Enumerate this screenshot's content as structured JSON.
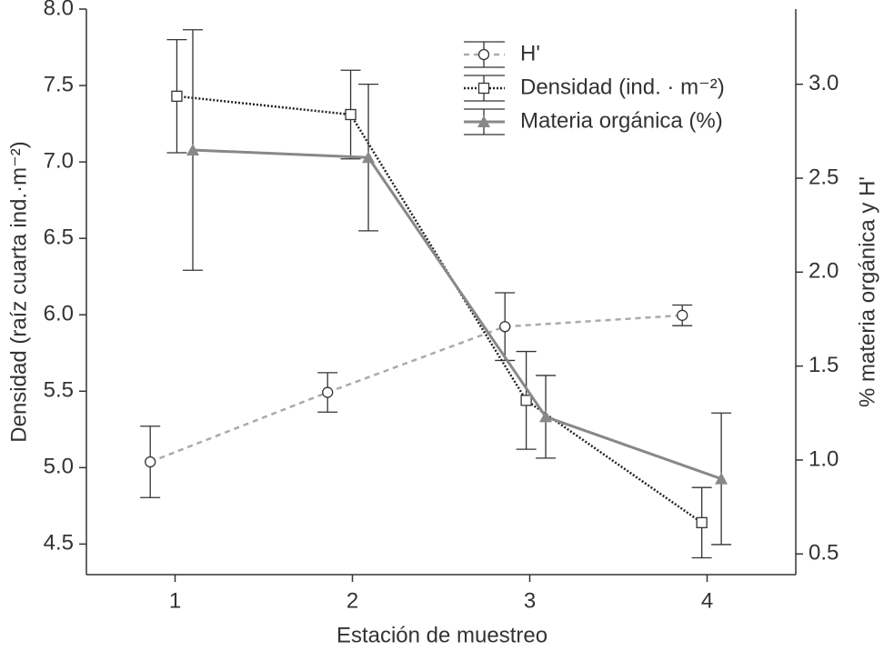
{
  "chart_data": {
    "type": "line",
    "xlabel": "Estación de muestreo",
    "ylabel": "Densidad (raíz cuarta ind.·m⁻²)",
    "y2label": "% materia orgánica y H'",
    "xlim": [
      0.5,
      4.5
    ],
    "xticks": [
      1,
      2,
      3,
      4
    ],
    "ylim": [
      4.3,
      8.0
    ],
    "yticks": [
      4.5,
      {
        "value": 5,
        "label": "5.0"
      },
      5.5,
      {
        "value": 6,
        "label": "6.0"
      },
      6.5,
      {
        "value": 7,
        "label": "7.0"
      },
      7.5,
      {
        "value": 8,
        "label": "8.0"
      }
    ],
    "y2lim": [
      0.39,
      3.4
    ],
    "y2ticks": [
      0.5,
      {
        "value": 1,
        "label": "1.0"
      },
      1.5,
      {
        "value": 2,
        "label": "2.0"
      },
      2.5,
      {
        "value": 3,
        "label": "3.0"
      }
    ],
    "legend": "upper right",
    "series": [
      {
        "name": "H'",
        "color": "#aaaaaa",
        "axis": "y2",
        "marker": "circle",
        "line": "dashed",
        "x": [
          0.86,
          1.86,
          2.86,
          3.86
        ],
        "values": [
          0.99,
          1.36,
          1.71,
          1.77
        ],
        "errors": [
          0.19,
          0.105,
          0.18,
          0.055
        ]
      },
      {
        "name": "Densidad (ind. · m⁻²)",
        "color": "#222222",
        "axis": "y",
        "marker": "square",
        "line": "dotted",
        "x": [
          1.01,
          1.99,
          2.98,
          3.97
        ],
        "values": [
          7.43,
          7.31,
          5.44,
          4.64
        ],
        "errors": [
          0.37,
          0.29,
          0.32,
          0.23
        ]
      },
      {
        "name": "Materia orgánica (%)",
        "color": "#888888",
        "axis": "y2",
        "marker": "triangle",
        "line": "solid",
        "x": [
          1.1,
          2.09,
          3.09,
          4.08
        ],
        "values": [
          2.65,
          2.61,
          1.23,
          0.9
        ],
        "errors": [
          0.64,
          0.39,
          0.22,
          0.35
        ]
      }
    ]
  }
}
